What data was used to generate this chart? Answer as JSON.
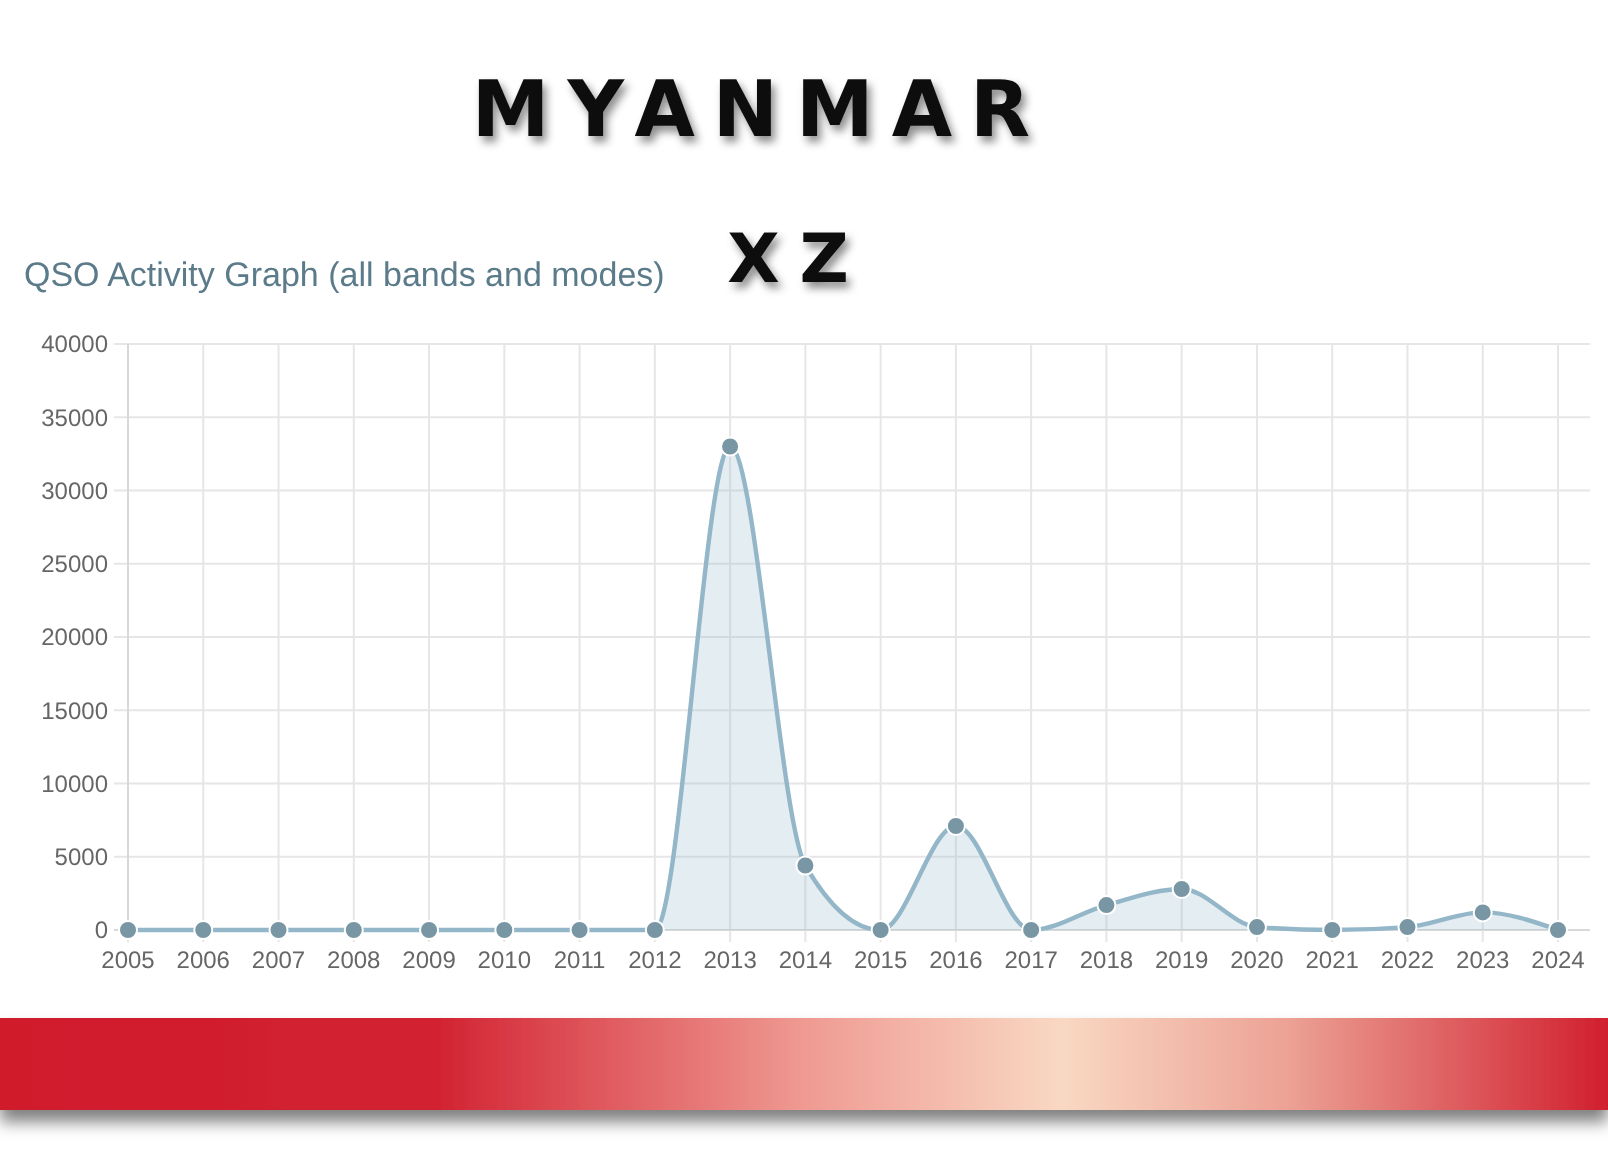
{
  "chart_data": {
    "type": "area",
    "title": "QSO Activity Graph (all bands and modes)",
    "annotations": [
      "MYANMAR",
      "XZ"
    ],
    "categories": [
      "2005",
      "2006",
      "2007",
      "2008",
      "2009",
      "2010",
      "2011",
      "2012",
      "2013",
      "2014",
      "2015",
      "2016",
      "2017",
      "2018",
      "2019",
      "2020",
      "2021",
      "2022",
      "2023",
      "2024"
    ],
    "series": [
      {
        "color": "#93b6c8",
        "values": [
          0,
          0,
          0,
          0,
          0,
          0,
          0,
          0,
          33000,
          4400,
          0,
          7100,
          0,
          1700,
          2800,
          200,
          0,
          200,
          1200,
          0
        ]
      }
    ],
    "ylim": [
      0,
      40000
    ],
    "yticks": [
      0,
      5000,
      10000,
      15000,
      20000,
      25000,
      30000,
      35000,
      40000
    ],
    "grid": true,
    "marker": "circle"
  }
}
